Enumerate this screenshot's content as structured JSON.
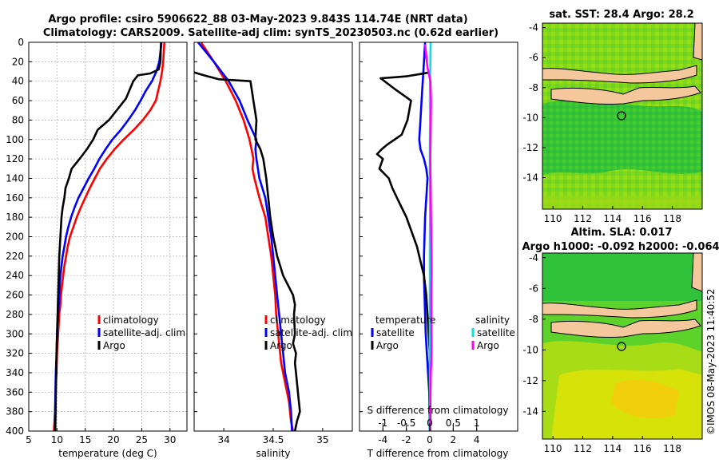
{
  "header": {
    "line1": "Argo profile: csiro 5906622_88 03-May-2023 9.843S 114.74E (NRT data)",
    "line2": "Climatology: CARS2009. Satellite-adj clim: synTS_20230503.nc (0.62d earlier)"
  },
  "credit": "©IMOS 08-May-2023 11:40:52",
  "colors": {
    "climatology": "#ff0000",
    "satellite": "#0000ff",
    "argo": "#000000",
    "sat_salinity": "#00e5e5",
    "argo_salinity": "#ff00ff",
    "land": "#f5c79d"
  },
  "chart_data": [
    {
      "type": "line",
      "id": "temperature",
      "xlabel": "temperature (deg C)",
      "ylabel": "",
      "xlim": [
        5,
        33
      ],
      "ylim": [
        0,
        400
      ],
      "xticks": [
        "5",
        "10",
        "15",
        "20",
        "25",
        "30"
      ],
      "xtick_values": [
        5,
        10,
        15,
        20,
        25,
        30
      ],
      "yticks": [
        "0",
        "20",
        "40",
        "60",
        "80",
        "100",
        "120",
        "140",
        "160",
        "180",
        "200",
        "220",
        "240",
        "260",
        "280",
        "300",
        "320",
        "340",
        "360",
        "380",
        "400"
      ],
      "legend": [
        "climatology",
        "satellite-adj. clim",
        "Argo"
      ],
      "series": [
        {
          "name": "climatology",
          "color": "#ff0000",
          "x": [
            29,
            28.8,
            28.6,
            28.3,
            27.5,
            26.5,
            25.2,
            23.6,
            21.8,
            20.2,
            18.8,
            17.6,
            16.7,
            15.8,
            15,
            14.2,
            13.5,
            12.9,
            12.3,
            11.9,
            11.6,
            11.3,
            11.1,
            10.9,
            10.7,
            10.6,
            10.4,
            10.3,
            10.2,
            10.1,
            10,
            9.95,
            9.9,
            9.8,
            9.75,
            9.7,
            9.65,
            9.6,
            9.55,
            9.5,
            9.45
          ],
          "y": [
            0,
            20,
            30,
            40,
            60,
            70,
            80,
            90,
            100,
            110,
            120,
            130,
            140,
            150,
            160,
            170,
            180,
            190,
            200,
            210,
            220,
            230,
            240,
            250,
            260,
            270,
            280,
            290,
            300,
            310,
            320,
            330,
            340,
            350,
            360,
            370,
            380,
            385,
            390,
            395,
            400
          ]
        },
        {
          "name": "satellite-adj. clim",
          "color": "#0000ff",
          "x": [
            28.5,
            28.1,
            27.6,
            26.8,
            25.7,
            24.8,
            23.8,
            22.6,
            21.3,
            19.8,
            18.6,
            17.5,
            16.6,
            15.6,
            14.7,
            13.8,
            13.1,
            12.5,
            12,
            11.6,
            11.3,
            11,
            10.8,
            10.6,
            10.5,
            10.4,
            10.3,
            10.2,
            10.1,
            10,
            9.95,
            9.9,
            9.85,
            9.8,
            9.75,
            9.7,
            9.65,
            9.6
          ],
          "y": [
            0,
            20,
            30,
            40,
            50,
            60,
            70,
            80,
            90,
            100,
            110,
            120,
            130,
            140,
            150,
            160,
            170,
            180,
            190,
            200,
            210,
            220,
            230,
            240,
            250,
            260,
            270,
            280,
            290,
            300,
            310,
            320,
            330,
            340,
            350,
            370,
            390,
            400
          ]
        },
        {
          "name": "Argo",
          "color": "#000000",
          "x": [
            28.4,
            28.3,
            28,
            26.5,
            24.3,
            23.5,
            22.2,
            19.2,
            17.2,
            16.4,
            15.3,
            14,
            12.6,
            12.1,
            11.5,
            11.3,
            11,
            10.8,
            10.6,
            10.4,
            10.3,
            10.2,
            10.1,
            10,
            9.9,
            9.8,
            9.75,
            9.7
          ],
          "y": [
            0,
            20,
            28,
            32,
            34,
            40,
            58,
            80,
            90,
            100,
            110,
            120,
            130,
            140,
            150,
            160,
            170,
            180,
            200,
            220,
            240,
            260,
            280,
            300,
            330,
            360,
            380,
            400
          ]
        }
      ]
    },
    {
      "type": "line",
      "id": "salinity",
      "xlabel": "salinity",
      "ylabel": "",
      "xlim": [
        33.7,
        35.3
      ],
      "ylim": [
        0,
        400
      ],
      "xticks": [
        "34",
        "34.5",
        "35"
      ],
      "xtick_values": [
        34,
        34.5,
        35
      ],
      "legend": [
        "climatology",
        "satellite-adj. clim",
        "Argo"
      ],
      "series": [
        {
          "name": "climatology",
          "color": "#ff0000",
          "x": [
            33.77,
            33.9,
            34.02,
            34.12,
            34.2,
            34.26,
            34.28,
            34.3,
            34.29,
            34.31,
            34.36,
            34.42,
            34.45,
            34.48,
            34.5,
            34.52,
            34.53,
            34.55,
            34.57,
            34.58,
            34.6,
            34.62,
            34.64,
            34.66,
            34.67,
            34.68,
            34.69,
            34.7
          ],
          "y": [
            0,
            20,
            40,
            60,
            80,
            100,
            110,
            120,
            130,
            140,
            160,
            180,
            200,
            220,
            240,
            260,
            280,
            300,
            320,
            330,
            340,
            350,
            360,
            370,
            380,
            390,
            395,
            400
          ]
        },
        {
          "name": "satellite-adj. clim",
          "color": "#0000ff",
          "x": [
            33.74,
            33.9,
            34.05,
            34.16,
            34.24,
            34.33,
            34.32,
            34.33,
            34.36,
            34.42,
            34.45,
            34.48,
            34.5,
            34.52,
            34.54,
            34.56,
            34.58,
            34.6,
            34.62,
            34.64,
            34.66,
            34.67,
            34.68,
            34.69
          ],
          "y": [
            0,
            20,
            40,
            60,
            80,
            100,
            110,
            120,
            140,
            160,
            180,
            200,
            220,
            240,
            260,
            280,
            300,
            320,
            340,
            350,
            360,
            370,
            380,
            400
          ]
        },
        {
          "name": "Argo",
          "color": "#000000",
          "x": [
            33.7,
            33.8,
            33.95,
            34.27,
            34.3,
            34.33,
            34.32,
            34.37,
            34.4,
            34.43,
            34.45,
            34.47,
            34.5,
            34.52,
            34.54,
            34.57,
            34.6,
            34.65,
            34.7,
            34.72,
            34.71,
            34.72,
            34.7,
            34.73,
            34.72,
            34.73,
            34.75,
            34.77,
            34.74,
            34.72
          ],
          "y": [
            31,
            34,
            38,
            40,
            60,
            80,
            100,
            110,
            120,
            140,
            160,
            180,
            200,
            210,
            220,
            230,
            240,
            250,
            260,
            270,
            280,
            300,
            310,
            320,
            330,
            340,
            360,
            380,
            390,
            400
          ]
        }
      ]
    },
    {
      "type": "line",
      "id": "difference",
      "xlabel": "T difference from climatology",
      "xlabel_top": "S difference from climatology",
      "xlim": [
        -6,
        7.5
      ],
      "xticks": [
        "-4",
        "-2",
        "0",
        "2",
        "4"
      ],
      "xtick_values": [
        -4,
        -2,
        0,
        2,
        4
      ],
      "xlim_top": [
        -1.5,
        1.875
      ],
      "xticks_top": [
        "-1",
        "-0.5",
        "0",
        "0.5",
        "1"
      ],
      "xtick_values_top": [
        -1,
        -0.5,
        0,
        0.5,
        1
      ],
      "ylim": [
        0,
        400
      ],
      "legend_titles": [
        "temperature",
        "salinity"
      ],
      "legend": [
        "satellite",
        "Argo",
        "satellite",
        "Argo"
      ],
      "series": [
        {
          "name": "T satellite",
          "color": "#0000ff",
          "x": [
            -0.4,
            -0.5,
            -0.6,
            -0.7,
            -0.8,
            -0.9,
            -0.8,
            -0.5,
            -0.3,
            -0.2,
            -0.3,
            -0.4,
            -0.45,
            -0.5,
            -0.5,
            -0.45,
            -0.4,
            -0.35,
            -0.3,
            -0.25,
            -0.2,
            -0.15,
            -0.1,
            -0.05,
            0,
            0.05,
            0.05,
            0,
            0.05
          ],
          "y": [
            0,
            20,
            40,
            60,
            80,
            100,
            110,
            120,
            130,
            140,
            160,
            180,
            200,
            220,
            240,
            260,
            280,
            300,
            310,
            320,
            330,
            340,
            350,
            360,
            370,
            380,
            390,
            395,
            400
          ]
        },
        {
          "name": "T Argo",
          "color": "#000000",
          "x": [
            0,
            -1,
            -2,
            -3,
            -4.2,
            -3,
            -1.6,
            -1.9,
            -2.4,
            -3,
            -3.6,
            -4.1,
            -4.5,
            -4,
            -4.3,
            -3.5,
            -3.2,
            -2.8,
            -2.4,
            -2,
            -1.7,
            -1.4,
            -1.1,
            -0.9,
            -0.7,
            -0.5,
            -0.3,
            -0.1,
            0,
            -0.05,
            0
          ],
          "y": [
            31,
            33,
            35,
            36,
            37,
            48,
            60,
            80,
            95,
            100,
            105,
            110,
            115,
            120,
            130,
            140,
            150,
            160,
            170,
            180,
            190,
            200,
            210,
            220,
            230,
            240,
            260,
            300,
            320,
            360,
            400
          ]
        },
        {
          "name": "S satellite",
          "color": "#00e5e5",
          "x": [
            0.07,
            0.05,
            0.02,
            0.01,
            0.02,
            0.01,
            0,
            0.01,
            0.02,
            0.02,
            0.01,
            0,
            0.01,
            0,
            0,
            0,
            0,
            0
          ],
          "y": [
            0,
            20,
            40,
            60,
            80,
            100,
            120,
            140,
            160,
            180,
            200,
            220,
            240,
            260,
            280,
            300,
            340,
            400
          ]
        },
        {
          "name": "S Argo",
          "color": "#ff00ff",
          "x": [
            -0.4,
            -0.35,
            -0.3,
            -0.25,
            -0.2,
            -0.1,
            0.05,
            0.1,
            0.08,
            0.06,
            0.04,
            0.06,
            0.08,
            0.1,
            0.12,
            0.15,
            0.15,
            0.12,
            0.13,
            0.14,
            0.15,
            0.14,
            0.12,
            0.08,
            0.05,
            0.02
          ],
          "y": [
            2,
            8,
            14,
            20,
            26,
            31,
            40,
            60,
            80,
            100,
            120,
            140,
            160,
            180,
            200,
            220,
            240,
            260,
            280,
            300,
            310,
            320,
            330,
            340,
            370,
            400
          ]
        }
      ]
    },
    {
      "type": "heatmap",
      "id": "sst-map",
      "title": "sat. SST: 28.4 Argo: 28.2",
      "xlim": [
        109.3,
        120
      ],
      "ylim": [
        -16.1,
        -3.7
      ],
      "xticks": [
        "110",
        "112",
        "114",
        "116",
        "118"
      ],
      "xtick_values": [
        110,
        112,
        114,
        116,
        118
      ],
      "yticks": [
        "-4",
        "-6",
        "-8",
        "-10",
        "-12",
        "-14"
      ],
      "ytick_values": [
        -4,
        -6,
        -8,
        -10,
        -12,
        -14
      ],
      "argo_position": [
        114.74,
        -9.843
      ]
    },
    {
      "type": "heatmap",
      "id": "sla-map",
      "title": "Altim. SLA: 0.017",
      "subtitle": "Argo h1000: -0.092 h2000: -0.064",
      "xlim": [
        109.3,
        120
      ],
      "ylim": [
        -15.8,
        -3.7
      ],
      "xticks": [
        "110",
        "112",
        "114",
        "116",
        "118"
      ],
      "xtick_values": [
        110,
        112,
        114,
        116,
        118
      ],
      "yticks": [
        "-4",
        "-6",
        "-8",
        "-10",
        "-12",
        "-14"
      ],
      "ytick_values": [
        -4,
        -6,
        -8,
        -10,
        -12,
        -14
      ],
      "argo_position": [
        114.74,
        -9.843
      ]
    }
  ]
}
